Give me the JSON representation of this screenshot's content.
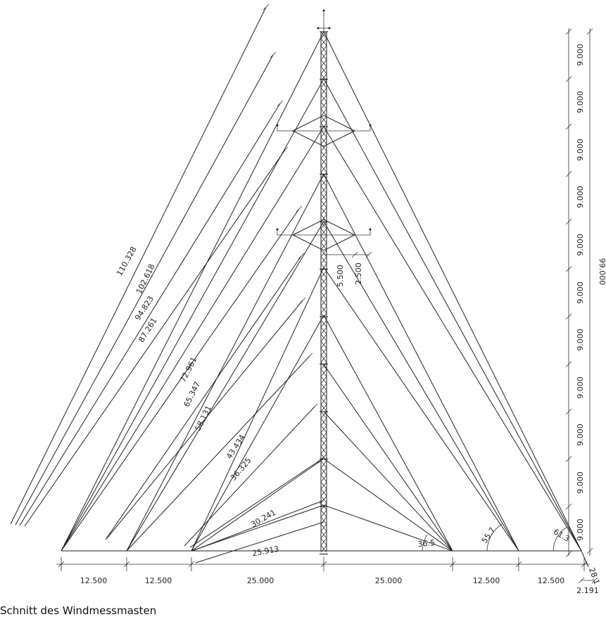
{
  "caption": "Schnitt des Windmessmasten",
  "guy_lengths": [
    "110.328",
    "102.618",
    "94.823",
    "87.261",
    "72.961",
    "65.347",
    "58.131",
    "43.434",
    "36.325",
    "30.241",
    "25.913"
  ],
  "bottom_dims": [
    "12.500",
    "12.500",
    "25.000",
    "25.000",
    "12.500",
    "12.500"
  ],
  "segment_heights": [
    "9.000",
    "9.000",
    "9.000",
    "9.000",
    "9.000",
    "9.000",
    "9.000",
    "9.000",
    "9.000",
    "9.000",
    "9.000"
  ],
  "total_height": "99.000",
  "arm_dims": [
    "5.500",
    "2.500"
  ],
  "angles": [
    "36.5",
    "55.7",
    "61.3",
    "28.1"
  ],
  "offset_dim": "2.191",
  "colors": {
    "line": "#222222",
    "mast_upper": "#111111",
    "mast_lower": "#9a5a1e"
  }
}
